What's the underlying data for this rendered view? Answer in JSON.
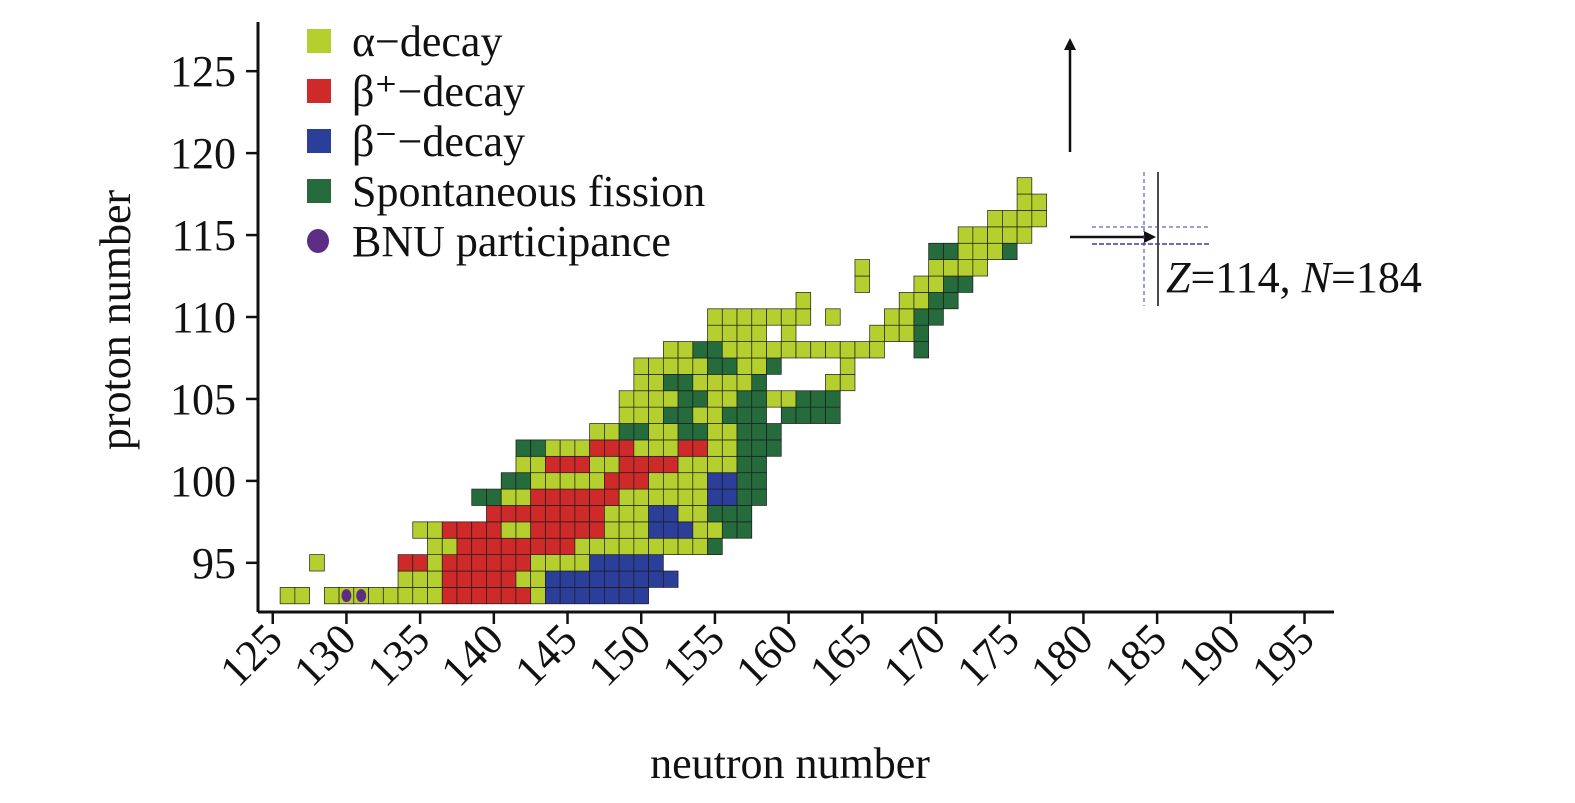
{
  "chart_data": {
    "type": "heatmap",
    "xlabel": "neutron number",
    "ylabel": "proton number",
    "xlim": [
      124,
      197
    ],
    "ylim": [
      92,
      128
    ],
    "xticks": [
      125,
      130,
      135,
      140,
      145,
      150,
      155,
      160,
      165,
      170,
      175,
      180,
      185,
      190,
      195
    ],
    "yticks": [
      95,
      100,
      105,
      110,
      115,
      120,
      125
    ],
    "xtick_labels": [
      "125",
      "130",
      "135",
      "140",
      "145",
      "150",
      "155",
      "160",
      "165",
      "170",
      "175",
      "180",
      "185",
      "190",
      "195"
    ],
    "ytick_labels": [
      "95",
      "100",
      "105",
      "110",
      "115",
      "120",
      "125"
    ],
    "legend_position": "top-left",
    "colors": {
      "alpha": "#b5cf2e",
      "beta_plus": "#cf2a2a",
      "beta_minus": "#2b3f9a",
      "fission": "#256b3c",
      "bnu": "#5c2d82"
    },
    "legend": [
      {
        "key": "alpha",
        "label": "α−decay",
        "marker": "square"
      },
      {
        "key": "beta_plus",
        "label": "β⁺−decay",
        "marker": "square"
      },
      {
        "key": "beta_minus",
        "label": "β⁻−decay",
        "marker": "square"
      },
      {
        "key": "fission",
        "label": "Spontaneous fission",
        "marker": "square"
      },
      {
        "key": "bnu",
        "label": "BNU participance",
        "marker": "circle"
      }
    ],
    "bnu_points": [
      [
        130,
        93
      ],
      [
        131,
        93
      ]
    ],
    "annotation": {
      "z_var": "Z",
      "z_val": "=114, ",
      "n_var": "N",
      "n_val": "=184",
      "z": 114,
      "n": 184
    },
    "region_rows": [
      {
        "z": 93,
        "segments": [
          [
            126,
            127,
            "alpha"
          ],
          [
            129,
            134,
            "alpha"
          ],
          [
            135,
            136,
            "alpha"
          ],
          [
            137,
            142,
            "beta_plus"
          ],
          [
            143,
            143,
            "alpha"
          ],
          [
            144,
            150,
            "beta_minus"
          ]
        ]
      },
      {
        "z": 94,
        "segments": [
          [
            134,
            136,
            "alpha"
          ],
          [
            137,
            141,
            "beta_plus"
          ],
          [
            142,
            143,
            "alpha"
          ],
          [
            144,
            147,
            "beta_minus"
          ],
          [
            148,
            152,
            "beta_minus"
          ]
        ]
      },
      {
        "z": 95,
        "segments": [
          [
            128,
            128,
            "alpha"
          ],
          [
            134,
            135,
            "beta_plus"
          ],
          [
            136,
            136,
            "alpha"
          ],
          [
            137,
            142,
            "beta_plus"
          ],
          [
            143,
            146,
            "alpha"
          ],
          [
            147,
            151,
            "beta_minus"
          ]
        ]
      },
      {
        "z": 96,
        "segments": [
          [
            136,
            137,
            "alpha"
          ],
          [
            138,
            145,
            "beta_plus"
          ],
          [
            146,
            151,
            "alpha"
          ],
          [
            152,
            154,
            "alpha"
          ],
          [
            155,
            155,
            "fission"
          ]
        ]
      },
      {
        "z": 97,
        "segments": [
          [
            135,
            136,
            "alpha"
          ],
          [
            137,
            140,
            "beta_plus"
          ],
          [
            141,
            142,
            "alpha"
          ],
          [
            143,
            147,
            "beta_plus"
          ],
          [
            148,
            150,
            "alpha"
          ],
          [
            151,
            153,
            "beta_minus"
          ],
          [
            154,
            155,
            "alpha"
          ],
          [
            156,
            157,
            "fission"
          ]
        ]
      },
      {
        "z": 98,
        "segments": [
          [
            140,
            141,
            "beta_plus"
          ],
          [
            142,
            147,
            "beta_plus"
          ],
          [
            148,
            150,
            "alpha"
          ],
          [
            151,
            152,
            "beta_minus"
          ],
          [
            153,
            154,
            "alpha"
          ],
          [
            155,
            157,
            "fission"
          ]
        ]
      },
      {
        "z": 99,
        "segments": [
          [
            139,
            140,
            "fission"
          ],
          [
            141,
            142,
            "alpha"
          ],
          [
            143,
            148,
            "beta_plus"
          ],
          [
            149,
            152,
            "alpha"
          ],
          [
            153,
            154,
            "alpha"
          ],
          [
            155,
            156,
            "beta_minus"
          ],
          [
            157,
            158,
            "fission"
          ]
        ]
      },
      {
        "z": 100,
        "segments": [
          [
            141,
            142,
            "fission"
          ],
          [
            143,
            147,
            "alpha"
          ],
          [
            148,
            150,
            "beta_plus"
          ],
          [
            151,
            154,
            "alpha"
          ],
          [
            155,
            156,
            "beta_minus"
          ],
          [
            157,
            158,
            "fission"
          ]
        ]
      },
      {
        "z": 101,
        "segments": [
          [
            142,
            143,
            "alpha"
          ],
          [
            144,
            146,
            "beta_plus"
          ],
          [
            147,
            148,
            "alpha"
          ],
          [
            149,
            152,
            "beta_plus"
          ],
          [
            153,
            156,
            "alpha"
          ],
          [
            157,
            158,
            "fission"
          ]
        ]
      },
      {
        "z": 102,
        "segments": [
          [
            142,
            143,
            "fission"
          ],
          [
            144,
            146,
            "alpha"
          ],
          [
            147,
            149,
            "beta_plus"
          ],
          [
            150,
            152,
            "alpha"
          ],
          [
            153,
            154,
            "beta_plus"
          ],
          [
            155,
            156,
            "alpha"
          ],
          [
            157,
            159,
            "fission"
          ]
        ]
      },
      {
        "z": 103,
        "segments": [
          [
            147,
            148,
            "alpha"
          ],
          [
            149,
            150,
            "fission"
          ],
          [
            151,
            152,
            "alpha"
          ],
          [
            153,
            154,
            "fission"
          ],
          [
            155,
            156,
            "alpha"
          ],
          [
            157,
            158,
            "fission"
          ],
          [
            159,
            159,
            "fission"
          ]
        ]
      },
      {
        "z": 104,
        "segments": [
          [
            149,
            151,
            "alpha"
          ],
          [
            152,
            153,
            "fission"
          ],
          [
            154,
            155,
            "alpha"
          ],
          [
            156,
            158,
            "fission"
          ],
          [
            160,
            161,
            "fission"
          ],
          [
            162,
            163,
            "fission"
          ]
        ]
      },
      {
        "z": 105,
        "segments": [
          [
            149,
            152,
            "alpha"
          ],
          [
            153,
            154,
            "fission"
          ],
          [
            155,
            156,
            "alpha"
          ],
          [
            157,
            158,
            "fission"
          ],
          [
            159,
            160,
            "alpha"
          ],
          [
            161,
            163,
            "fission"
          ]
        ]
      },
      {
        "z": 106,
        "segments": [
          [
            150,
            151,
            "alpha"
          ],
          [
            152,
            153,
            "fission"
          ],
          [
            154,
            157,
            "alpha"
          ],
          [
            158,
            158,
            "fission"
          ],
          [
            163,
            164,
            "alpha"
          ]
        ]
      },
      {
        "z": 107,
        "segments": [
          [
            150,
            154,
            "alpha"
          ],
          [
            155,
            156,
            "fission"
          ],
          [
            157,
            158,
            "alpha"
          ],
          [
            159,
            159,
            "fission"
          ],
          [
            164,
            164,
            "alpha"
          ]
        ]
      },
      {
        "z": 108,
        "segments": [
          [
            152,
            153,
            "alpha"
          ],
          [
            154,
            155,
            "fission"
          ],
          [
            156,
            158,
            "alpha"
          ],
          [
            159,
            160,
            "alpha"
          ],
          [
            161,
            164,
            "alpha"
          ],
          [
            165,
            166,
            "alpha"
          ],
          [
            169,
            169,
            "fission"
          ]
        ]
      },
      {
        "z": 109,
        "segments": [
          [
            155,
            156,
            "alpha"
          ],
          [
            157,
            158,
            "alpha"
          ],
          [
            160,
            160,
            "alpha"
          ],
          [
            166,
            168,
            "alpha"
          ],
          [
            169,
            169,
            "fission"
          ]
        ]
      },
      {
        "z": 110,
        "segments": [
          [
            155,
            158,
            "alpha"
          ],
          [
            159,
            161,
            "alpha"
          ],
          [
            163,
            163,
            "alpha"
          ],
          [
            167,
            168,
            "alpha"
          ],
          [
            169,
            170,
            "fission"
          ]
        ]
      },
      {
        "z": 111,
        "segments": [
          [
            161,
            161,
            "alpha"
          ],
          [
            168,
            169,
            "alpha"
          ],
          [
            170,
            171,
            "fission"
          ]
        ]
      },
      {
        "z": 112,
        "segments": [
          [
            165,
            165,
            "alpha"
          ],
          [
            169,
            170,
            "alpha"
          ],
          [
            171,
            172,
            "fission"
          ]
        ]
      },
      {
        "z": 113,
        "segments": [
          [
            165,
            165,
            "alpha"
          ],
          [
            170,
            171,
            "alpha"
          ],
          [
            172,
            173,
            "alpha"
          ]
        ]
      },
      {
        "z": 114,
        "segments": [
          [
            170,
            171,
            "fission"
          ],
          [
            172,
            174,
            "alpha"
          ],
          [
            175,
            175,
            "fission"
          ]
        ]
      },
      {
        "z": 115,
        "segments": [
          [
            172,
            176,
            "alpha"
          ]
        ]
      },
      {
        "z": 116,
        "segments": [
          [
            174,
            177,
            "alpha"
          ]
        ]
      },
      {
        "z": 117,
        "segments": [
          [
            176,
            177,
            "alpha"
          ]
        ]
      },
      {
        "z": 118,
        "segments": [
          [
            176,
            176,
            "alpha"
          ]
        ]
      }
    ]
  }
}
